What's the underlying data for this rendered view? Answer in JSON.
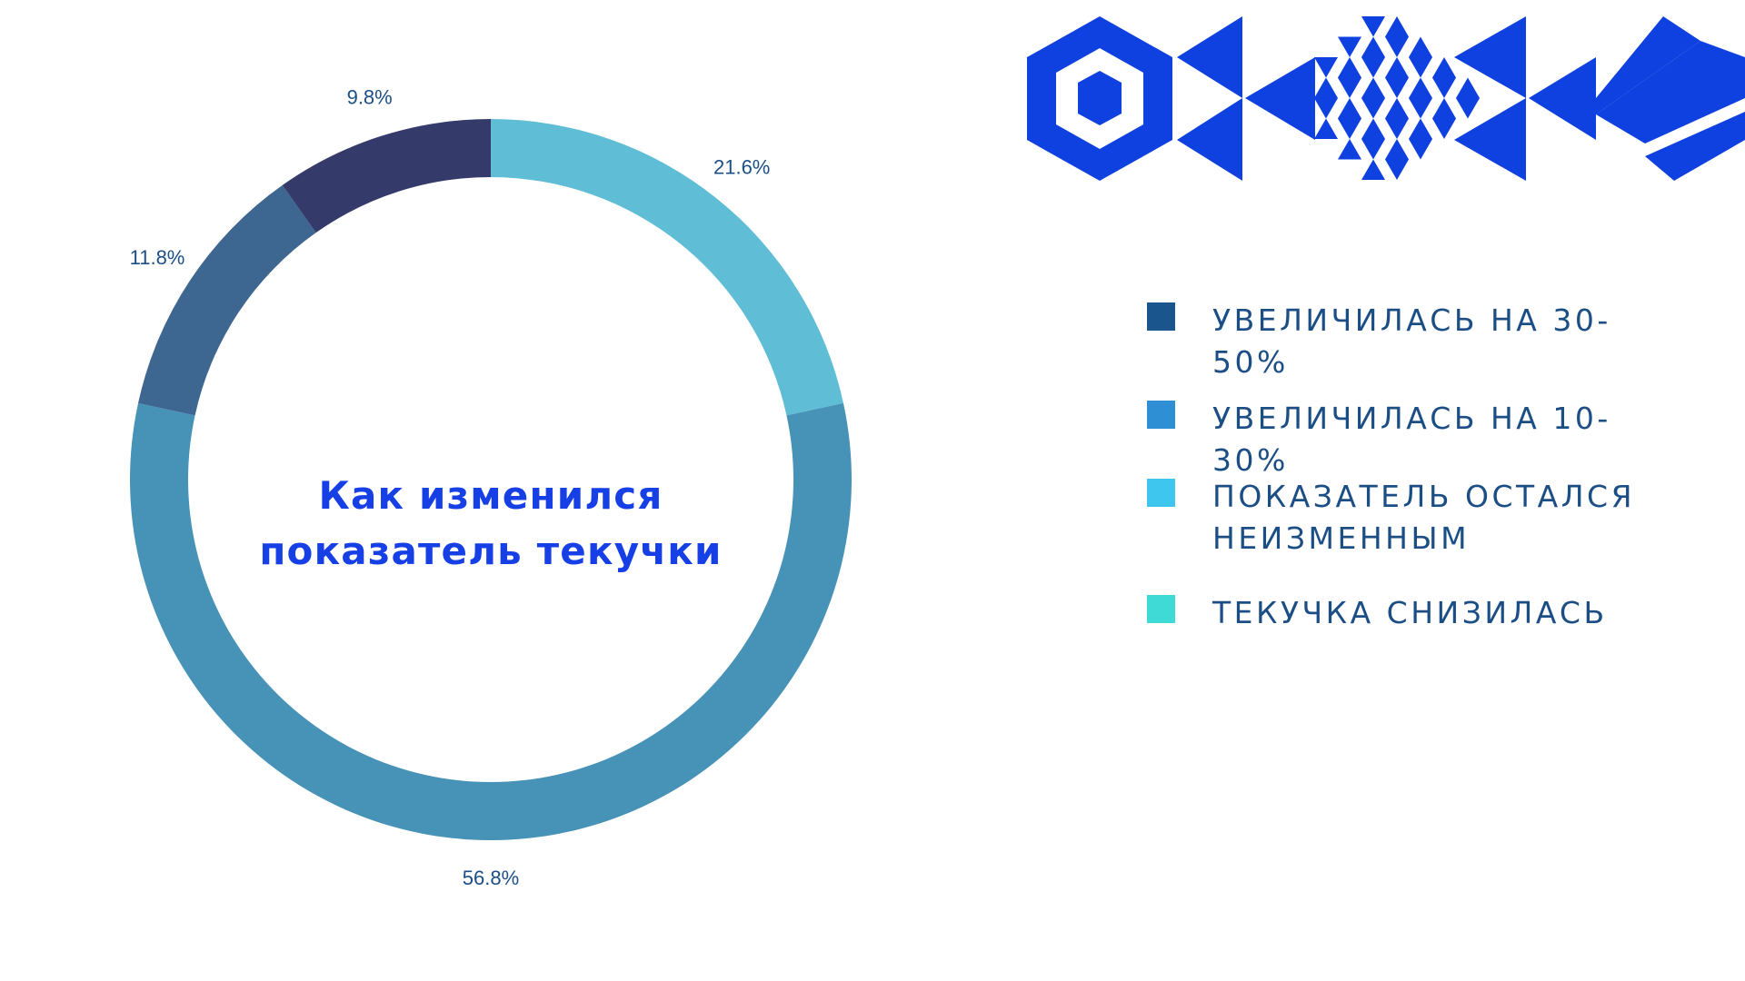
{
  "colors": {
    "title": "#1640e6",
    "label": "#1c4e86",
    "pattern": "#0f40e0",
    "background": "#ffffff"
  },
  "chart_data": {
    "type": "pie",
    "style": "donut",
    "title": "Как изменился показатель текучки",
    "slices": [
      {
        "value": 21.6,
        "label": "21.6%",
        "color": "#5fbdd5"
      },
      {
        "value": 56.8,
        "label": "56.8%",
        "color": "#4792b7"
      },
      {
        "value": 11.8,
        "label": "11.8%",
        "color": "#3d6690"
      },
      {
        "value": 9.8,
        "label": "9.8%",
        "color": "#343a6a"
      }
    ]
  },
  "legend": [
    {
      "label": "Увеличилась на 30-50%",
      "color": "#1a558e"
    },
    {
      "label": "Увеличилась на 10-30%",
      "color": "#2f8fd5"
    },
    {
      "label": "Показатель остался неизменным",
      "color": "#3fc6ef"
    },
    {
      "label": "Текучка снизилась",
      "color": "#3fdad6"
    }
  ]
}
